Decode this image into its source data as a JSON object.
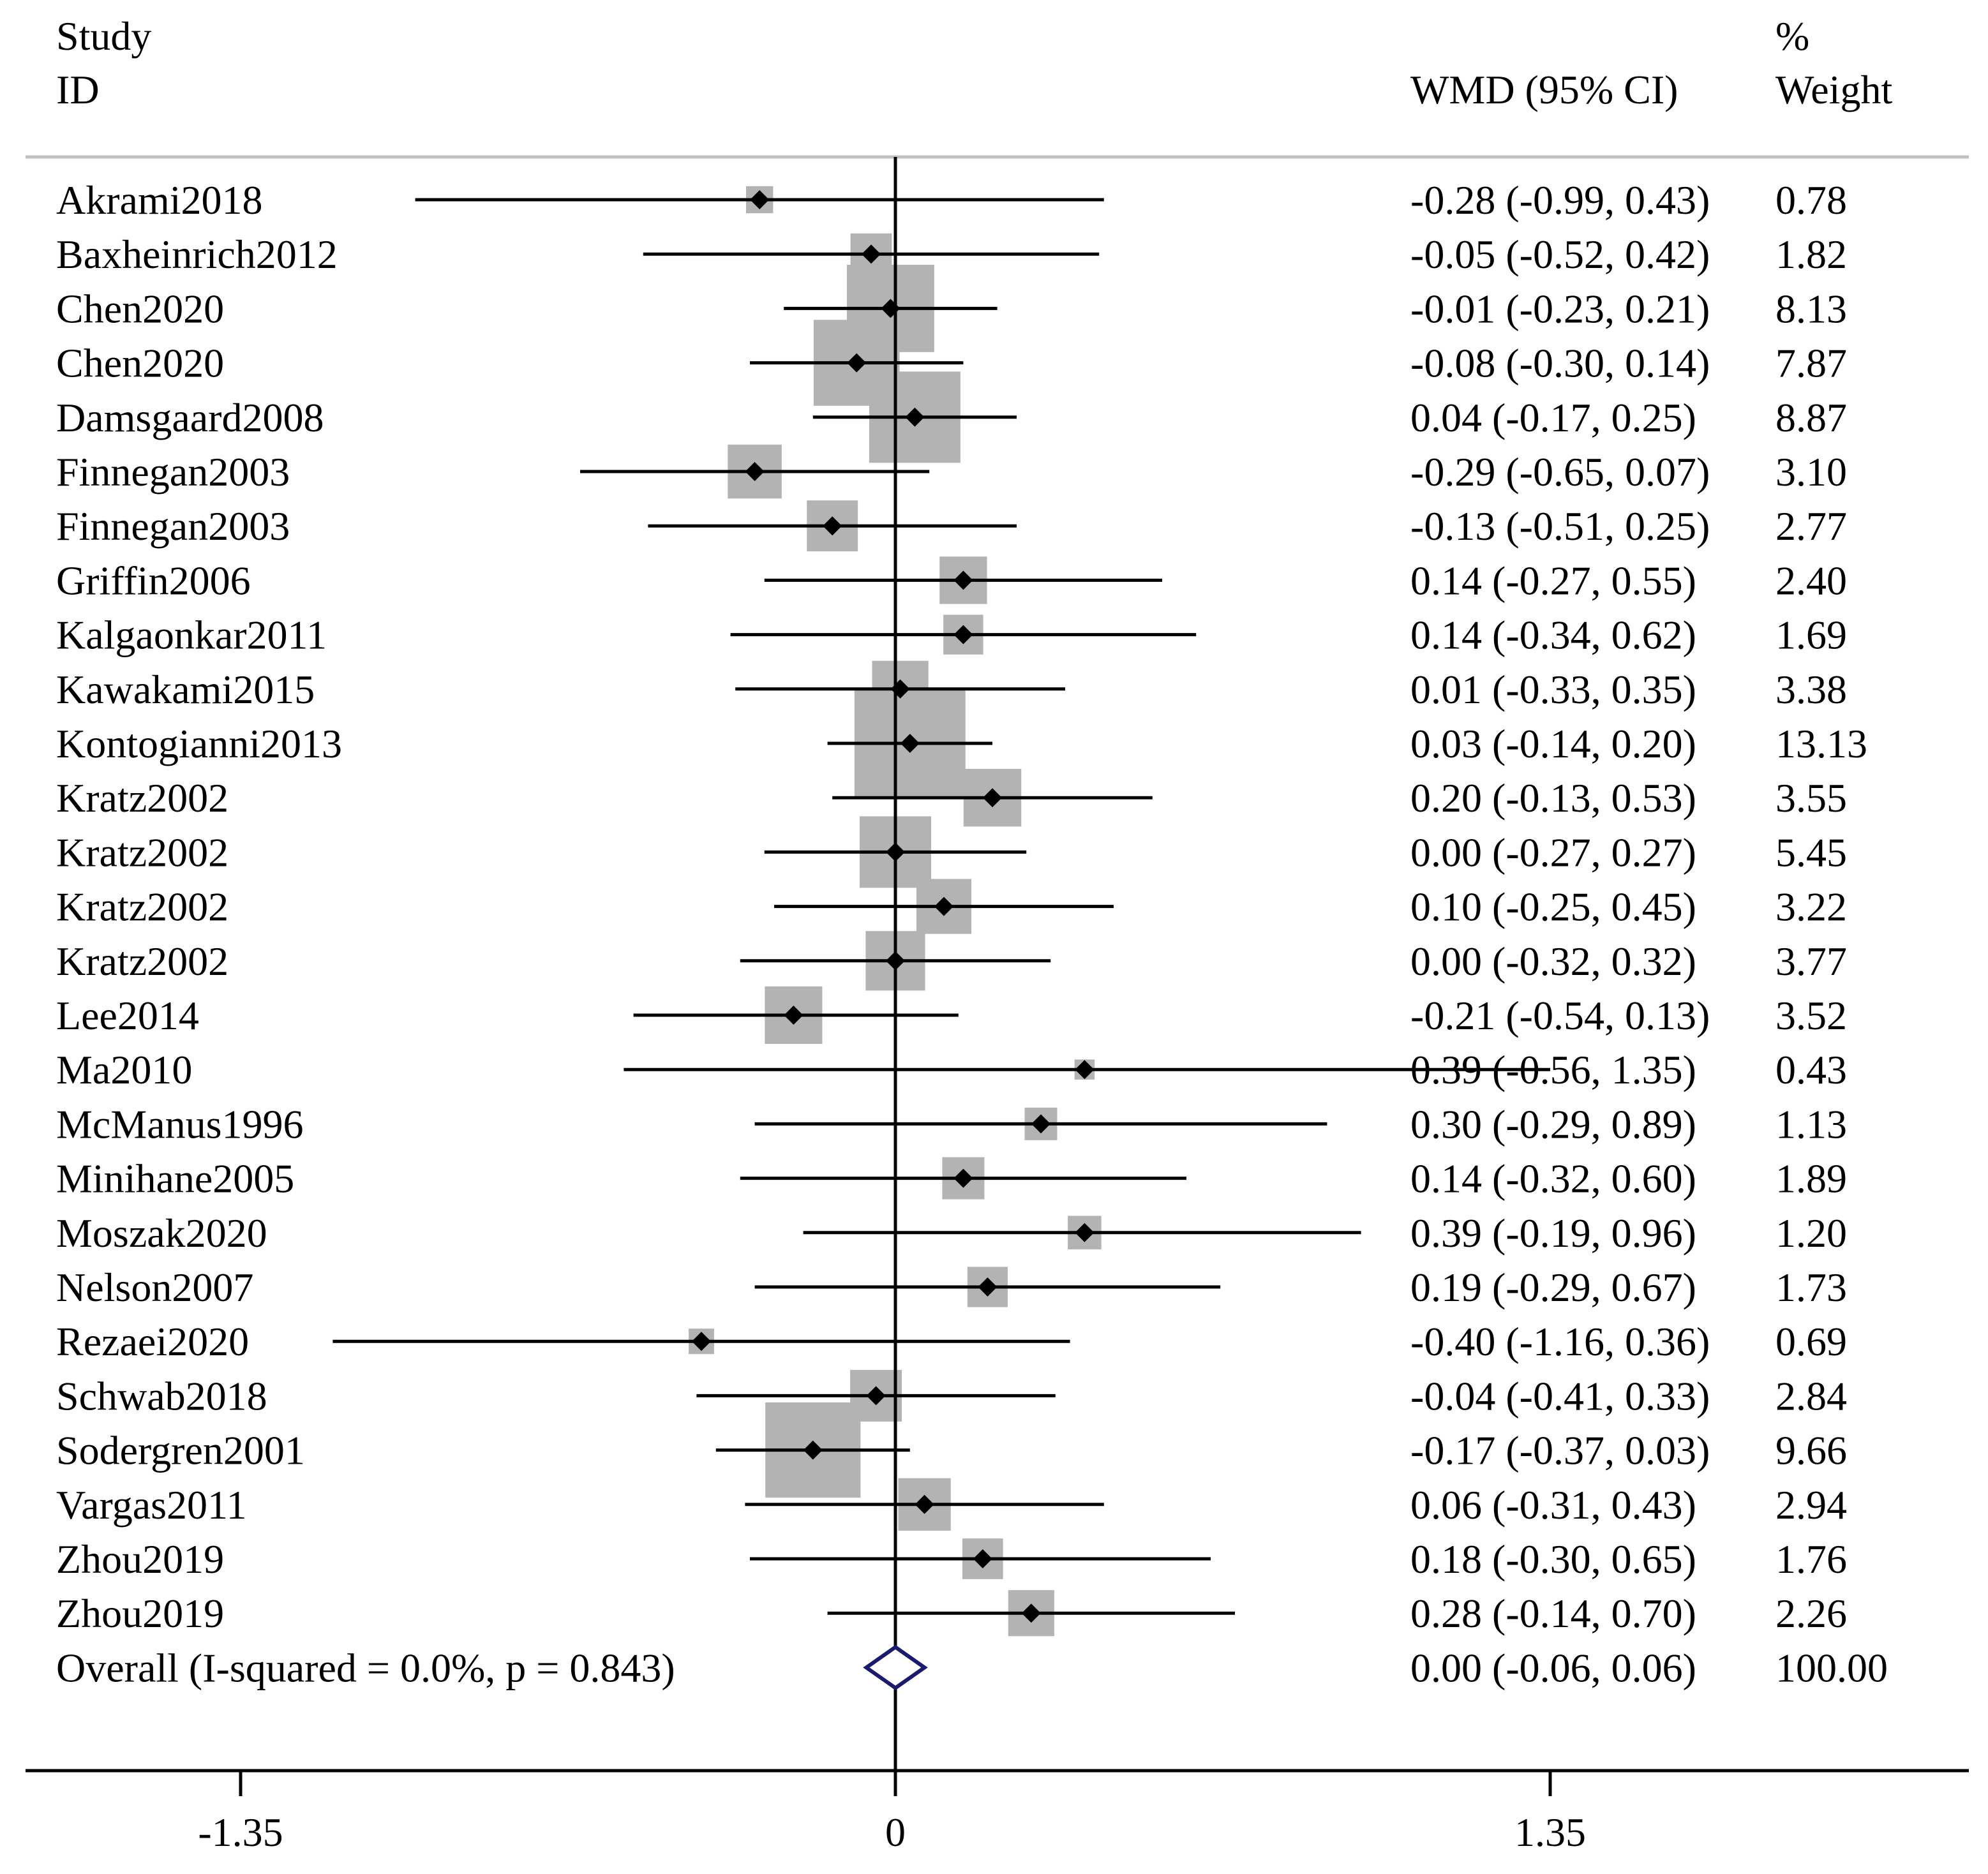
{
  "header": {
    "study_line1": "Study",
    "study_line2": "ID",
    "effect_label": "WMD (95% CI)",
    "weight_line1": "%",
    "weight_line2": "Weight"
  },
  "chart_data": {
    "type": "forest",
    "measure": "WMD (95% CI)",
    "xlim": [
      -1.35,
      1.35
    ],
    "x_ticks": [
      -1.35,
      0,
      1.35
    ],
    "x_tick_labels": [
      "-1.35",
      "0",
      "1.35"
    ],
    "null_line": 0,
    "studies": [
      {
        "id": "Akrami2018",
        "est": -0.28,
        "lo": -0.99,
        "hi": 0.43,
        "ci_text": "-0.28 (-0.99, 0.43)",
        "weight": 0.78,
        "weight_text": "0.78"
      },
      {
        "id": "Baxheinrich2012",
        "est": -0.05,
        "lo": -0.52,
        "hi": 0.42,
        "ci_text": "-0.05 (-0.52, 0.42)",
        "weight": 1.82,
        "weight_text": "1.82"
      },
      {
        "id": "Chen2020",
        "est": -0.01,
        "lo": -0.23,
        "hi": 0.21,
        "ci_text": "-0.01 (-0.23, 0.21)",
        "weight": 8.13,
        "weight_text": "8.13"
      },
      {
        "id": "Chen2020",
        "est": -0.08,
        "lo": -0.3,
        "hi": 0.14,
        "ci_text": "-0.08 (-0.30, 0.14)",
        "weight": 7.87,
        "weight_text": "7.87"
      },
      {
        "id": "Damsgaard2008",
        "est": 0.04,
        "lo": -0.17,
        "hi": 0.25,
        "ci_text": "0.04 (-0.17, 0.25)",
        "weight": 8.87,
        "weight_text": "8.87"
      },
      {
        "id": "Finnegan2003",
        "est": -0.29,
        "lo": -0.65,
        "hi": 0.07,
        "ci_text": "-0.29 (-0.65, 0.07)",
        "weight": 3.1,
        "weight_text": "3.10"
      },
      {
        "id": "Finnegan2003",
        "est": -0.13,
        "lo": -0.51,
        "hi": 0.25,
        "ci_text": "-0.13 (-0.51, 0.25)",
        "weight": 2.77,
        "weight_text": "2.77"
      },
      {
        "id": "Griffin2006",
        "est": 0.14,
        "lo": -0.27,
        "hi": 0.55,
        "ci_text": "0.14 (-0.27, 0.55)",
        "weight": 2.4,
        "weight_text": "2.40"
      },
      {
        "id": "Kalgaonkar2011",
        "est": 0.14,
        "lo": -0.34,
        "hi": 0.62,
        "ci_text": "0.14 (-0.34, 0.62)",
        "weight": 1.69,
        "weight_text": "1.69"
      },
      {
        "id": "Kawakami2015",
        "est": 0.01,
        "lo": -0.33,
        "hi": 0.35,
        "ci_text": "0.01 (-0.33, 0.35)",
        "weight": 3.38,
        "weight_text": "3.38"
      },
      {
        "id": "Kontogianni2013",
        "est": 0.03,
        "lo": -0.14,
        "hi": 0.2,
        "ci_text": "0.03 (-0.14, 0.20)",
        "weight": 13.13,
        "weight_text": "13.13"
      },
      {
        "id": "Kratz2002",
        "est": 0.2,
        "lo": -0.13,
        "hi": 0.53,
        "ci_text": "0.20 (-0.13, 0.53)",
        "weight": 3.55,
        "weight_text": "3.55"
      },
      {
        "id": "Kratz2002",
        "est": 0.0,
        "lo": -0.27,
        "hi": 0.27,
        "ci_text": "0.00 (-0.27, 0.27)",
        "weight": 5.45,
        "weight_text": "5.45"
      },
      {
        "id": "Kratz2002",
        "est": 0.1,
        "lo": -0.25,
        "hi": 0.45,
        "ci_text": "0.10 (-0.25, 0.45)",
        "weight": 3.22,
        "weight_text": "3.22"
      },
      {
        "id": "Kratz2002",
        "est": 0.0,
        "lo": -0.32,
        "hi": 0.32,
        "ci_text": "0.00 (-0.32, 0.32)",
        "weight": 3.77,
        "weight_text": "3.77"
      },
      {
        "id": "Lee2014",
        "est": -0.21,
        "lo": -0.54,
        "hi": 0.13,
        "ci_text": "-0.21 (-0.54, 0.13)",
        "weight": 3.52,
        "weight_text": "3.52"
      },
      {
        "id": "Ma2010",
        "est": 0.39,
        "lo": -0.56,
        "hi": 1.35,
        "ci_text": "0.39 (-0.56, 1.35)",
        "weight": 0.43,
        "weight_text": "0.43"
      },
      {
        "id": "McManus1996",
        "est": 0.3,
        "lo": -0.29,
        "hi": 0.89,
        "ci_text": "0.30 (-0.29, 0.89)",
        "weight": 1.13,
        "weight_text": "1.13"
      },
      {
        "id": "Minihane2005",
        "est": 0.14,
        "lo": -0.32,
        "hi": 0.6,
        "ci_text": "0.14 (-0.32, 0.60)",
        "weight": 1.89,
        "weight_text": "1.89"
      },
      {
        "id": "Moszak2020",
        "est": 0.39,
        "lo": -0.19,
        "hi": 0.96,
        "ci_text": "0.39 (-0.19, 0.96)",
        "weight": 1.2,
        "weight_text": "1.20"
      },
      {
        "id": "Nelson2007",
        "est": 0.19,
        "lo": -0.29,
        "hi": 0.67,
        "ci_text": "0.19 (-0.29, 0.67)",
        "weight": 1.73,
        "weight_text": "1.73"
      },
      {
        "id": "Rezaei2020",
        "est": -0.4,
        "lo": -1.16,
        "hi": 0.36,
        "ci_text": "-0.40 (-1.16, 0.36)",
        "weight": 0.69,
        "weight_text": "0.69"
      },
      {
        "id": "Schwab2018",
        "est": -0.04,
        "lo": -0.41,
        "hi": 0.33,
        "ci_text": "-0.04 (-0.41, 0.33)",
        "weight": 2.84,
        "weight_text": "2.84"
      },
      {
        "id": "Sodergren2001",
        "est": -0.17,
        "lo": -0.37,
        "hi": 0.03,
        "ci_text": "-0.17 (-0.37, 0.03)",
        "weight": 9.66,
        "weight_text": "9.66"
      },
      {
        "id": "Vargas2011",
        "est": 0.06,
        "lo": -0.31,
        "hi": 0.43,
        "ci_text": "0.06 (-0.31, 0.43)",
        "weight": 2.94,
        "weight_text": "2.94"
      },
      {
        "id": "Zhou2019",
        "est": 0.18,
        "lo": -0.3,
        "hi": 0.65,
        "ci_text": "0.18 (-0.30, 0.65)",
        "weight": 1.76,
        "weight_text": "1.76"
      },
      {
        "id": "Zhou2019",
        "est": 0.28,
        "lo": -0.14,
        "hi": 0.7,
        "ci_text": "0.28 (-0.14, 0.70)",
        "weight": 2.26,
        "weight_text": "2.26"
      }
    ],
    "overall": {
      "label": "Overall  (I-squared = 0.0%, p = 0.843)",
      "est": 0.0,
      "lo": -0.06,
      "hi": 0.06,
      "ci_text": "0.00 (-0.06, 0.06)",
      "weight_text": "100.00"
    },
    "colors": {
      "ci_line": "#000000",
      "weight_box": "#b3b3b3",
      "point": "#000000",
      "overall_diamond": "#1a1a6e",
      "rule": "#c0c0c0"
    }
  }
}
